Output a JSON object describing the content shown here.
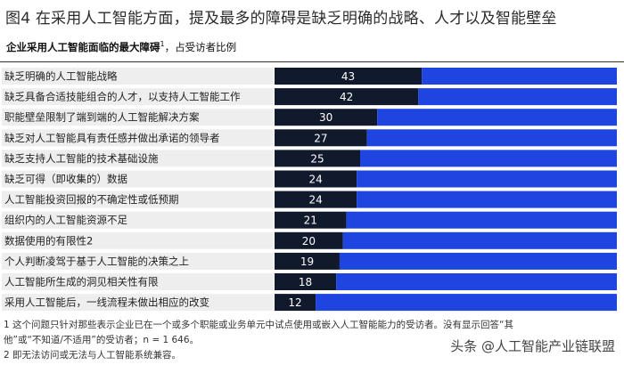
{
  "header": {
    "title": "图4 在采用人工智能方面，提及最多的障碍是缺乏明确的战略、人才以及智能壁垒",
    "subtitle_bold": "企业采用人工智能面临的最大障碍",
    "subtitle_sup": "1",
    "subtitle_rest": "，占受访者比例"
  },
  "colors": {
    "dark": "#111a2c",
    "blue": "#1f45e0",
    "label_bg": "#eeeeee",
    "separator": "#888888"
  },
  "chart_data": {
    "type": "bar",
    "orientation": "horizontal",
    "stacked_to": 100,
    "title": "企业采用人工智能面临的最大障碍1，占受访者比例",
    "categories": [
      "缺乏明确的人工智能战略",
      "缺乏具备合适技能组合的人才，以支持人工智能工作",
      "职能壁垒限制了端到端的人工智能解决方案",
      "缺乏对人工智能具有责任感并做出承诺的领导者",
      "缺乏支持人工智能的技术基础设施",
      "缺乏可得（即收集的）数据",
      "人工智能投资回报的不确定性或低预期",
      "组织内的人工智能资源不足",
      "数据使用的有限性2",
      "个人判断凌驾于基于人工智能的决策之上",
      "人工智能所生成的洞见相关性有限",
      "采用人工智能后，一线流程未做出相应的改变"
    ],
    "values": [
      43,
      42,
      30,
      27,
      25,
      24,
      24,
      21,
      20,
      19,
      18,
      12
    ],
    "xlim": [
      0,
      100
    ],
    "legend": "none"
  },
  "footnotes": {
    "note1_line1": "1 这个问题只针对那些表示企业已在一个或多个职能或业务单元中试点使用或嵌入人工智能能力的受访者。没有显示回答“其",
    "note1_line2": "他”或“不知道/不适用”的受访者；n = 1 646。",
    "note2": "2 即无法访问或无法与人工智能系统兼容。"
  },
  "watermark": "头条 @人工智能产业链联盟"
}
